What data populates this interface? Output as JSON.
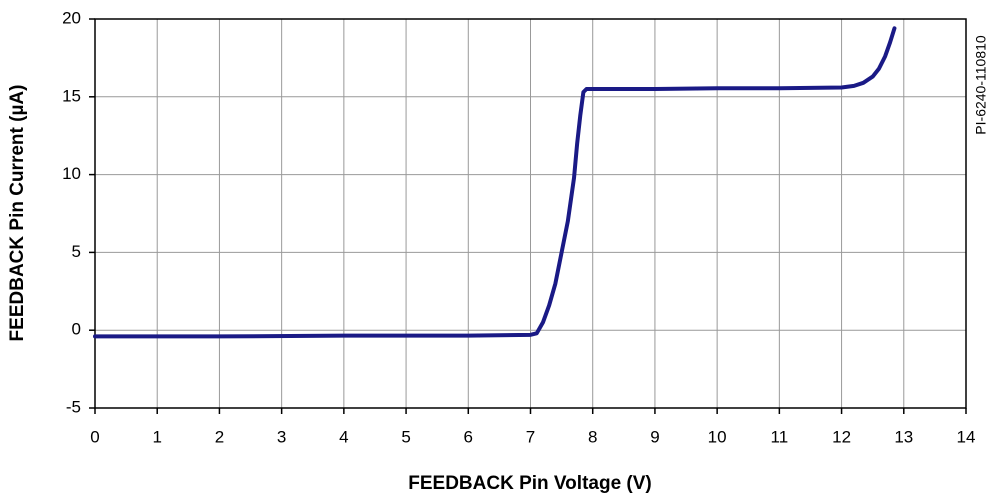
{
  "chart_data": {
    "type": "line",
    "x_label": "FEEDBACK Pin Voltage (V)",
    "y_label": "FEEDBACK Pin Current (µA)",
    "annotation": "PI-6240-110810",
    "x": [
      0,
      2,
      4,
      6,
      7,
      7.1,
      7.2,
      7.3,
      7.4,
      7.5,
      7.6,
      7.7,
      7.75,
      7.8,
      7.85,
      7.9,
      9,
      10,
      11,
      12,
      12.2,
      12.35,
      12.5,
      12.6,
      12.7,
      12.78,
      12.85
    ],
    "values": [
      -0.4,
      -0.4,
      -0.35,
      -0.35,
      -0.3,
      -0.2,
      0.5,
      1.6,
      3,
      5,
      7,
      9.8,
      12,
      13.8,
      15.3,
      15.5,
      15.5,
      15.55,
      15.55,
      15.6,
      15.7,
      15.9,
      16.3,
      16.8,
      17.6,
      18.5,
      19.4
    ],
    "color": "#1a1a86",
    "xlim": [
      0,
      14
    ],
    "xticks": [
      0,
      1,
      2,
      3,
      4,
      5,
      6,
      7,
      8,
      9,
      10,
      11,
      12,
      13,
      14
    ],
    "ylim": [
      -5,
      20
    ],
    "yticks": [
      -5,
      0,
      5,
      10,
      15,
      20
    ],
    "grid": true
  }
}
